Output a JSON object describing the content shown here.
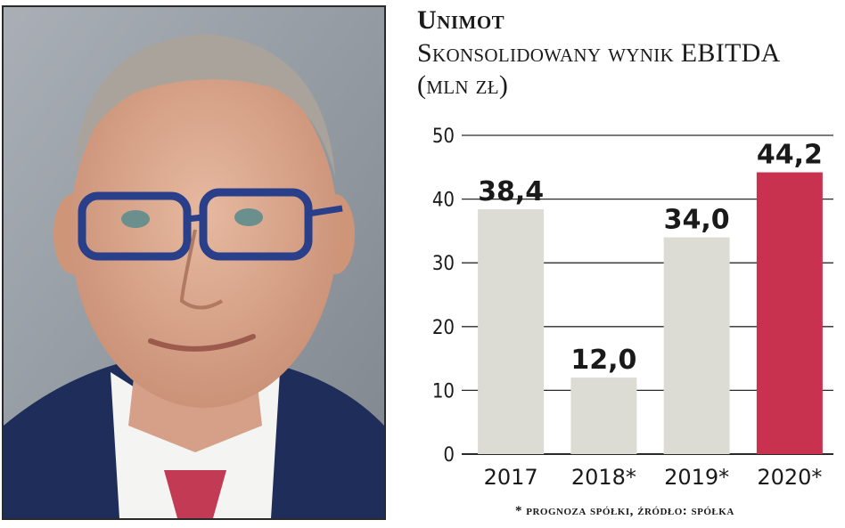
{
  "header": {
    "title": "Unimot",
    "subtitle": "Skonsolidowany wynik EBITDA (mln zł)"
  },
  "footnote": "* prognoza spółki, źródło: spółka",
  "chart_data": {
    "type": "bar",
    "title": "Unimot",
    "subtitle": "Skonsolidowany wynik EBITDA (mln zł)",
    "categories": [
      "2017",
      "2018*",
      "2019*",
      "2020*"
    ],
    "values": [
      38.4,
      12.0,
      34.0,
      44.2
    ],
    "value_labels": [
      "38,4",
      "12,0",
      "34,0",
      "44,2"
    ],
    "y_ticks": [
      "0",
      "10",
      "20",
      "30",
      "40",
      "50"
    ],
    "ylim": [
      0,
      50
    ],
    "grid": true,
    "xlabel": "",
    "ylabel": "",
    "colors": {
      "default_bar": "#dcdcd5",
      "highlight_bar": "#c9324e",
      "grid": "#2a2a2a",
      "text": "#1a1a1a"
    },
    "highlight_index": 3
  }
}
